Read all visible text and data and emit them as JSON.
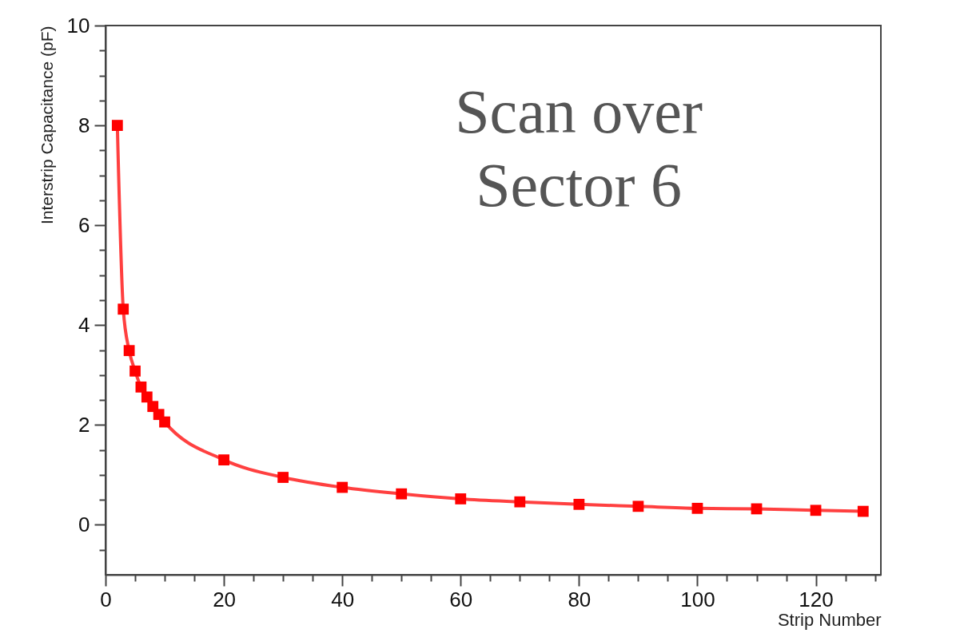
{
  "chart_data": {
    "type": "line",
    "xlabel": "Strip Number",
    "ylabel": "Interstrip Capacitance (pF)",
    "annotations": [
      "Scan over\nSector 6"
    ],
    "x": [
      2,
      3,
      4,
      5,
      6,
      7,
      8,
      9,
      10,
      20,
      30,
      40,
      50,
      60,
      70,
      80,
      90,
      100,
      110,
      120,
      128
    ],
    "series": [
      {
        "color": "#ff0000",
        "values": [
          8.0,
          4.32,
          3.49,
          3.08,
          2.76,
          2.56,
          2.37,
          2.21,
          2.06,
          1.3,
          0.95,
          0.75,
          0.62,
          0.52,
          0.46,
          0.41,
          0.37,
          0.33,
          0.32,
          0.29,
          0.27
        ]
      }
    ],
    "marker": "square",
    "line_style": "solid",
    "grid": false,
    "legend": false,
    "xlim": [
      0,
      131
    ],
    "ylim": [
      -1,
      10
    ],
    "xticks": [
      0,
      {
        "value": 5,
        "label": null
      },
      {
        "value": 10,
        "label": null
      },
      {
        "value": 15,
        "label": null
      },
      20,
      {
        "value": 25,
        "label": null
      },
      {
        "value": 30,
        "label": null
      },
      {
        "value": 35,
        "label": null
      },
      40,
      {
        "value": 45,
        "label": null
      },
      {
        "value": 50,
        "label": null
      },
      {
        "value": 55,
        "label": null
      },
      60,
      {
        "value": 65,
        "label": null
      },
      {
        "value": 70,
        "label": null
      },
      {
        "value": 75,
        "label": null
      },
      80,
      {
        "value": 85,
        "label": null
      },
      {
        "value": 90,
        "label": null
      },
      {
        "value": 95,
        "label": null
      },
      100,
      {
        "value": 105,
        "label": null
      },
      {
        "value": 110,
        "label": null
      },
      {
        "value": 115,
        "label": null
      },
      120,
      {
        "value": 125,
        "label": null
      },
      {
        "value": 130,
        "label": null
      }
    ],
    "yticks": [
      {
        "value": -0.5,
        "label": null
      },
      0,
      {
        "value": 0.5,
        "label": null
      },
      {
        "value": 1,
        "label": null
      },
      {
        "value": 1.5,
        "label": null
      },
      2,
      {
        "value": 2.5,
        "label": null
      },
      {
        "value": 3,
        "label": null
      },
      {
        "value": 3.5,
        "label": null
      },
      4,
      {
        "value": 4.5,
        "label": null
      },
      {
        "value": 5,
        "label": null
      },
      {
        "value": 5.5,
        "label": null
      },
      6,
      {
        "value": 6.5,
        "label": null
      },
      {
        "value": 7,
        "label": null
      },
      {
        "value": 7.5,
        "label": null
      },
      8,
      {
        "value": 8.5,
        "label": null
      },
      {
        "value": 9,
        "label": null
      },
      {
        "value": 9.5,
        "label": null
      },
      10
    ]
  }
}
